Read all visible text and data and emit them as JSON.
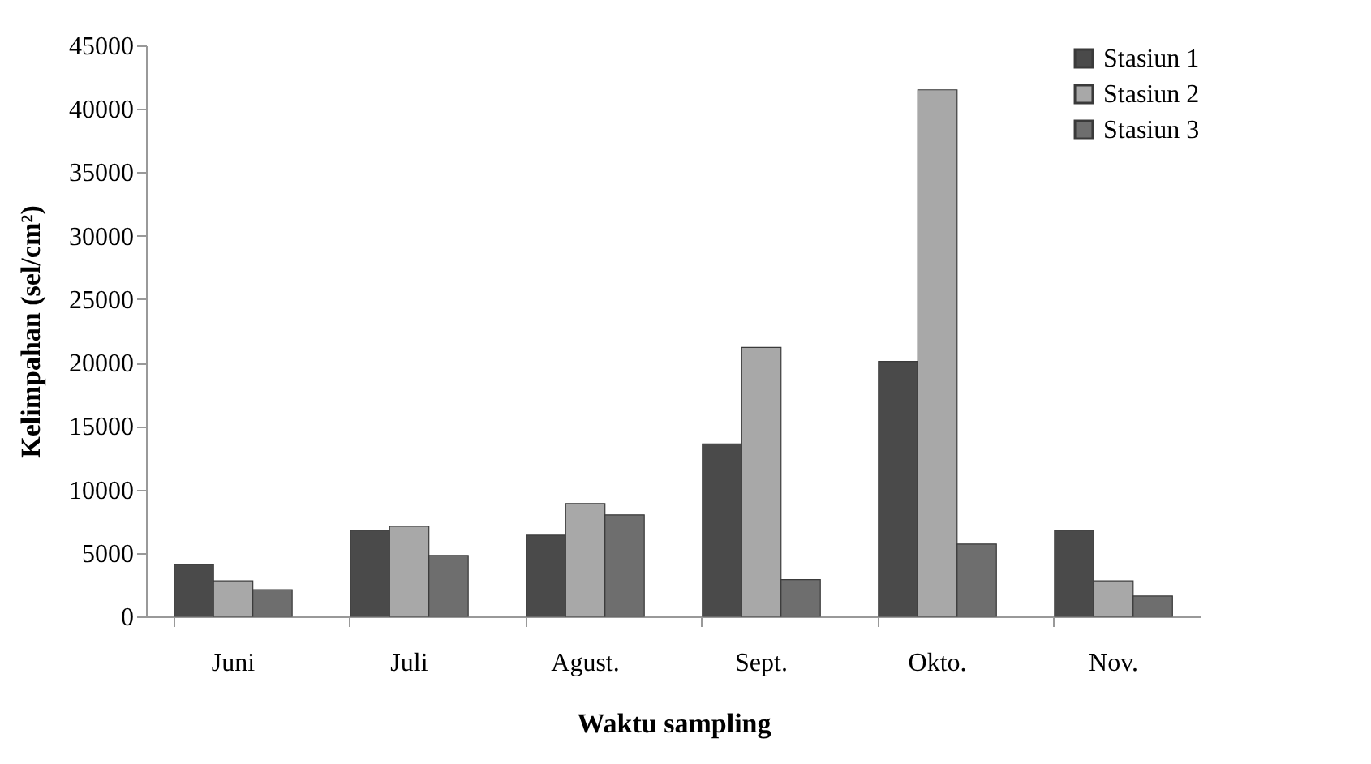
{
  "chart_data": {
    "type": "bar",
    "xlabel": "Waktu sampling",
    "ylabel": "Kelimpahan (sel/cm²)",
    "categories": [
      "Juni",
      "Juli",
      "Agust.",
      "Sept.",
      "Okto.",
      "Nov."
    ],
    "series": [
      {
        "name": "Stasiun 1",
        "color": "#4a4a4a",
        "values": [
          4100,
          6800,
          6400,
          13600,
          20100,
          6800
        ]
      },
      {
        "name": "Stasiun 2",
        "color": "#a8a8a8",
        "values": [
          2800,
          7100,
          8900,
          21200,
          41500,
          2800
        ]
      },
      {
        "name": "Stasiun 3",
        "color": "#6e6e6e",
        "values": [
          2100,
          4800,
          8000,
          2900,
          5700,
          1600
        ]
      }
    ],
    "ylim": [
      0,
      45000
    ],
    "yticks": [
      0,
      5000,
      10000,
      15000,
      20000,
      25000,
      30000,
      35000,
      40000,
      45000
    ],
    "grid": false,
    "legend": "top right"
  }
}
